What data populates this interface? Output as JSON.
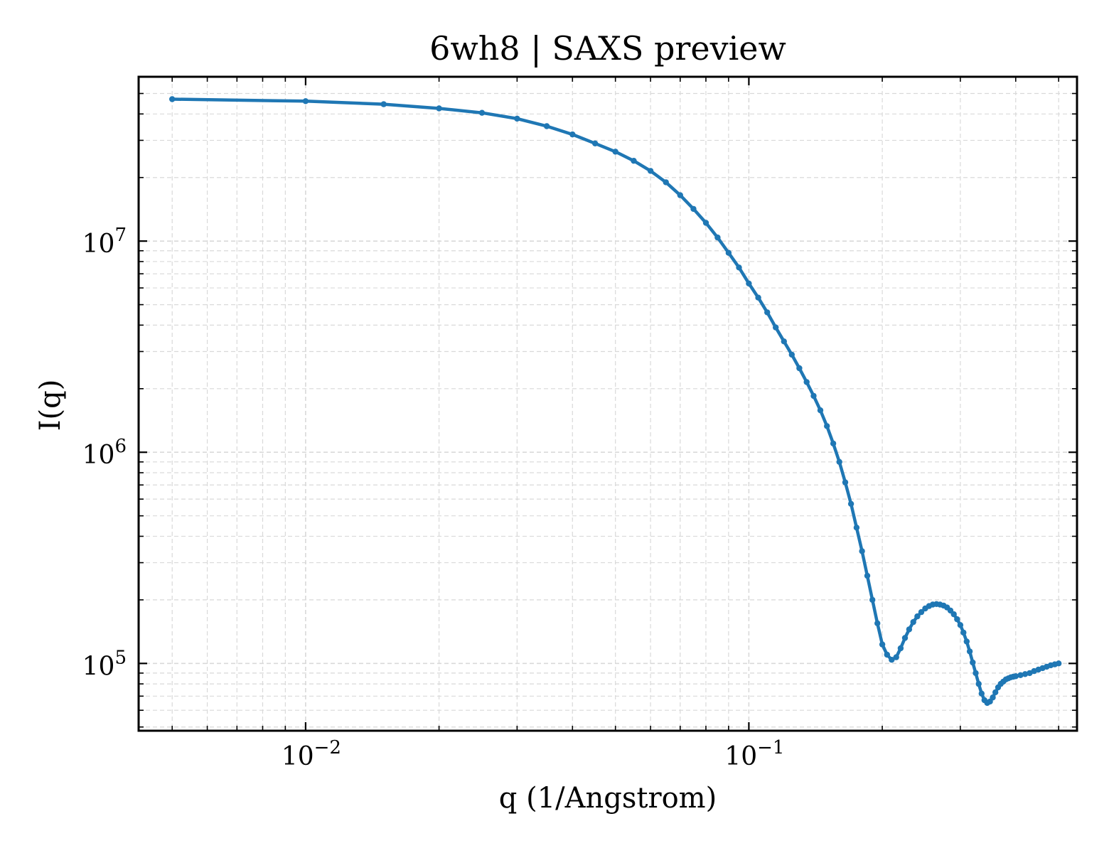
{
  "chart_data": {
    "type": "line",
    "title": "6wh8 | SAXS preview",
    "xlabel": "q (1/Angstrom)",
    "ylabel": "I(q)",
    "xscale": "log",
    "yscale": "log",
    "xlim": [
      0.0042,
      0.55
    ],
    "ylim": [
      48000,
      60000000
    ],
    "grid": true,
    "legend": "none",
    "colors": {
      "line": "#1f77b4",
      "grid": "#d9d9d9"
    },
    "x_ticks": [
      {
        "base": "10",
        "exp": "−2",
        "value": 0.01
      },
      {
        "base": "10",
        "exp": "−1",
        "value": 0.1
      }
    ],
    "y_ticks": [
      {
        "base": "10",
        "exp": "5",
        "value": 100000
      },
      {
        "base": "10",
        "exp": "6",
        "value": 1000000
      },
      {
        "base": "10",
        "exp": "7",
        "value": 10000000
      }
    ],
    "series": [
      {
        "x": [
          0.005,
          0.01,
          0.015,
          0.02,
          0.025,
          0.03,
          0.035,
          0.04,
          0.045,
          0.05,
          0.055,
          0.06,
          0.065,
          0.07,
          0.075,
          0.08,
          0.085,
          0.09,
          0.095,
          0.1,
          0.105,
          0.11,
          0.115,
          0.12,
          0.125,
          0.13,
          0.135,
          0.14,
          0.145,
          0.15,
          0.155,
          0.16,
          0.165,
          0.17,
          0.175,
          0.18,
          0.185,
          0.19,
          0.195,
          0.2,
          0.205,
          0.21,
          0.215,
          0.22,
          0.225,
          0.23,
          0.235,
          0.24,
          0.245,
          0.25,
          0.255,
          0.26,
          0.265,
          0.27,
          0.275,
          0.28,
          0.285,
          0.29,
          0.295,
          0.3,
          0.305,
          0.31,
          0.315,
          0.32,
          0.325,
          0.33,
          0.335,
          0.34,
          0.345,
          0.35,
          0.355,
          0.36,
          0.365,
          0.37,
          0.375,
          0.38,
          0.385,
          0.39,
          0.395,
          0.4,
          0.41,
          0.42,
          0.43,
          0.44,
          0.45,
          0.46,
          0.47,
          0.48,
          0.49,
          0.5
        ],
        "y": [
          47000000,
          46000000,
          44500000,
          42500000,
          40500000,
          38000000,
          35000000,
          32000000,
          29000000,
          26500000,
          24000000,
          21500000,
          19000000,
          16500000,
          14200000,
          12200000,
          10400000,
          8800000,
          7500000,
          6300000,
          5400000,
          4600000,
          3900000,
          3350000,
          2900000,
          2500000,
          2150000,
          1850000,
          1580000,
          1330000,
          1100000,
          900000,
          720000,
          570000,
          440000,
          340000,
          260000,
          200000,
          155000,
          123000,
          110000,
          104000,
          107000,
          118000,
          132000,
          145000,
          157000,
          167000,
          175000,
          182000,
          187000,
          190000,
          191000,
          190000,
          188000,
          184000,
          178000,
          171000,
          162000,
          152000,
          140000,
          127000,
          114000,
          101000,
          90000,
          80000,
          72000,
          67000,
          65000,
          66000,
          69000,
          73000,
          77000,
          80000,
          82000,
          84000,
          85000,
          86000,
          86500,
          87000,
          88000,
          89000,
          90000,
          92000,
          93500,
          95000,
          96500,
          98000,
          99000,
          100000
        ]
      }
    ]
  }
}
